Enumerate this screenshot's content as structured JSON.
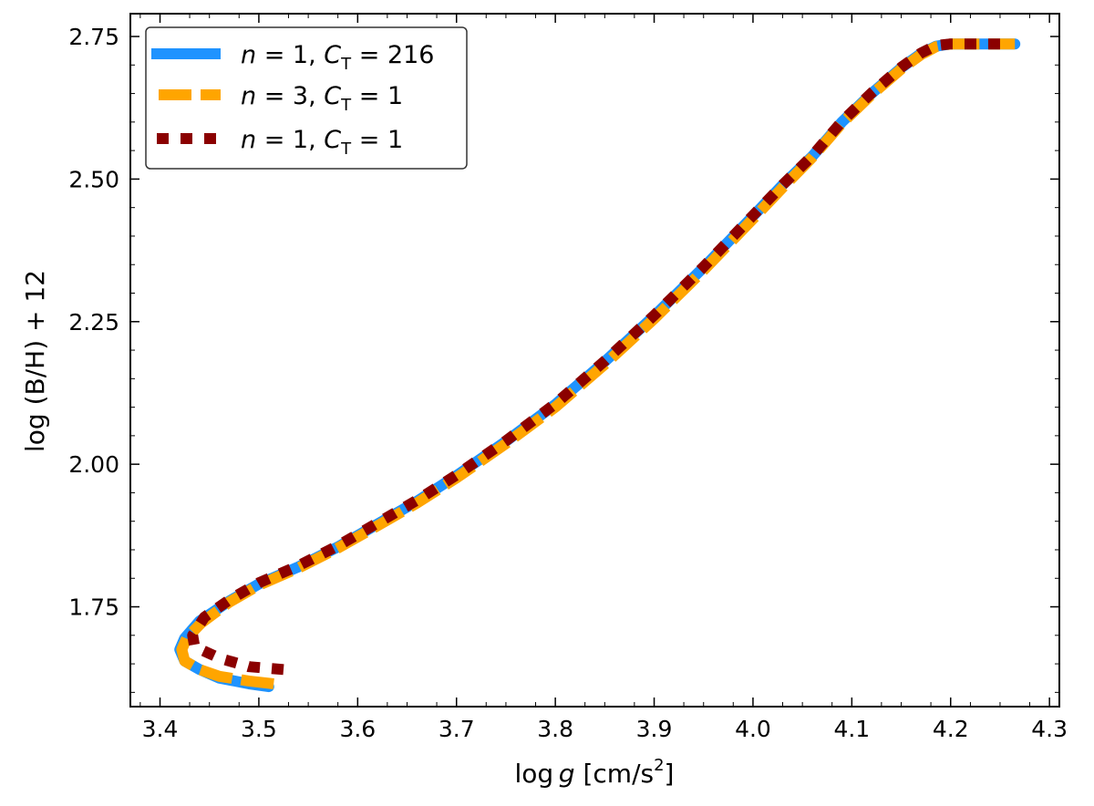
{
  "chart_data": {
    "type": "line",
    "title": "",
    "xlabel_parts": {
      "pre": "log ",
      "italic": "g",
      "post": " [cm/s",
      "sup": "2",
      "end": "]"
    },
    "ylabel": "log  (B/H) + 12",
    "xlim": [
      3.37,
      4.31
    ],
    "ylim": [
      1.575,
      2.79
    ],
    "xticks": [
      3.4,
      3.5,
      3.6,
      3.7,
      3.8,
      3.9,
      4.0,
      4.1,
      4.2,
      4.3
    ],
    "xtick_labels": [
      "3.4",
      "3.5",
      "3.6",
      "3.7",
      "3.8",
      "3.9",
      "4.0",
      "4.1",
      "4.2",
      "4.3"
    ],
    "yticks": [
      1.75,
      2.0,
      2.25,
      2.5,
      2.75
    ],
    "ytick_labels": [
      "1.75",
      "2.00",
      "2.25",
      "2.50",
      "2.75"
    ],
    "grid": false,
    "legend_position": "top-left",
    "series": [
      {
        "name": "n = 1, C_T = 216",
        "label": {
          "n": "1",
          "ct": "216"
        },
        "color": "#1f93ff",
        "style": "solid",
        "x": [
          3.51,
          3.49,
          3.46,
          3.44,
          3.425,
          3.42,
          3.425,
          3.44,
          3.47,
          3.5,
          3.54,
          3.58,
          3.62,
          3.66,
          3.7,
          3.75,
          3.8,
          3.85,
          3.9,
          3.95,
          4.0,
          4.03,
          4.06,
          4.09,
          4.12,
          4.15,
          4.17,
          4.185,
          4.2,
          4.22,
          4.265
        ],
        "y": [
          1.61,
          1.615,
          1.625,
          1.64,
          1.655,
          1.675,
          1.695,
          1.725,
          1.76,
          1.79,
          1.82,
          1.855,
          1.895,
          1.935,
          1.98,
          2.04,
          2.105,
          2.18,
          2.26,
          2.345,
          2.435,
          2.49,
          2.54,
          2.6,
          2.65,
          2.695,
          2.72,
          2.733,
          2.737,
          2.737,
          2.737
        ]
      },
      {
        "name": "n = 3, C_T = 1",
        "label": {
          "n": "3",
          "ct": "1"
        },
        "color": "#ffa500",
        "style": "dashed",
        "x": [
          3.515,
          3.49,
          3.46,
          3.44,
          3.425,
          3.422,
          3.427,
          3.442,
          3.47,
          3.5,
          3.54,
          3.58,
          3.62,
          3.66,
          3.7,
          3.75,
          3.8,
          3.85,
          3.9,
          3.95,
          4.0,
          4.03,
          4.06,
          4.09,
          4.12,
          4.15,
          4.17,
          4.185,
          4.2,
          4.22,
          4.265
        ],
        "y": [
          1.615,
          1.62,
          1.628,
          1.64,
          1.655,
          1.675,
          1.695,
          1.722,
          1.758,
          1.788,
          1.818,
          1.853,
          1.892,
          1.932,
          1.976,
          2.036,
          2.1,
          2.175,
          2.255,
          2.34,
          2.43,
          2.485,
          2.538,
          2.598,
          2.648,
          2.693,
          2.718,
          2.732,
          2.737,
          2.737,
          2.737
        ]
      },
      {
        "name": "n = 1, C_T = 1",
        "label": {
          "n": "1",
          "ct": "1"
        },
        "color": "#8b0000",
        "style": "dotted",
        "x": [
          3.525,
          3.49,
          3.46,
          3.435,
          3.433,
          3.445,
          3.47,
          3.5,
          3.54,
          3.58,
          3.62,
          3.66,
          3.7,
          3.75,
          3.8,
          3.85,
          3.9,
          3.95,
          4.0,
          4.03,
          4.06,
          4.09,
          4.12,
          4.15,
          4.17,
          4.185,
          4.2,
          4.22,
          4.255
        ],
        "y": [
          1.64,
          1.645,
          1.66,
          1.68,
          1.7,
          1.732,
          1.762,
          1.792,
          1.822,
          1.857,
          1.897,
          1.937,
          1.981,
          2.041,
          2.106,
          2.181,
          2.261,
          2.346,
          2.436,
          2.49,
          2.541,
          2.601,
          2.651,
          2.696,
          2.721,
          2.734,
          2.737,
          2.737,
          2.737
        ]
      }
    ]
  }
}
